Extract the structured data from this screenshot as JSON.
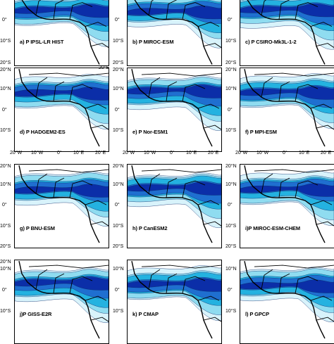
{
  "panels": [
    {
      "label": "a) P IPSL-LR HIST"
    },
    {
      "label": "b) P MIROC-ESM"
    },
    {
      "label": "c) P CSIRO-Mk3L-1-2"
    },
    {
      "label": "d) P HADGEM2-ES"
    },
    {
      "label": "e) P  Nor-ESM1"
    },
    {
      "label": "f) P MPI-ESM"
    },
    {
      "label": "g) P BNU-ESM"
    },
    {
      "label": "h) P CanESM2"
    },
    {
      "label": "i)P MIROC-ESM-CHEM"
    },
    {
      "label": "j)P GISS-E2R"
    },
    {
      "label": "k) P CMAP"
    },
    {
      "label": "l) P GPCP"
    }
  ],
  "axes": {
    "lat_ticks": [
      "20°N",
      "10°N",
      "0°",
      "10°S",
      "20°S"
    ],
    "lon_ticks": [
      "20°W",
      "10°W",
      "0°",
      "10°E",
      "20°E"
    ]
  },
  "colors": {
    "level1": "#d8f3fb",
    "level2": "#8fdcf0",
    "level3": "#24b2e0",
    "level4": "#1f6fd0",
    "level5": "#0b2ea8",
    "coast": "#000000"
  }
}
